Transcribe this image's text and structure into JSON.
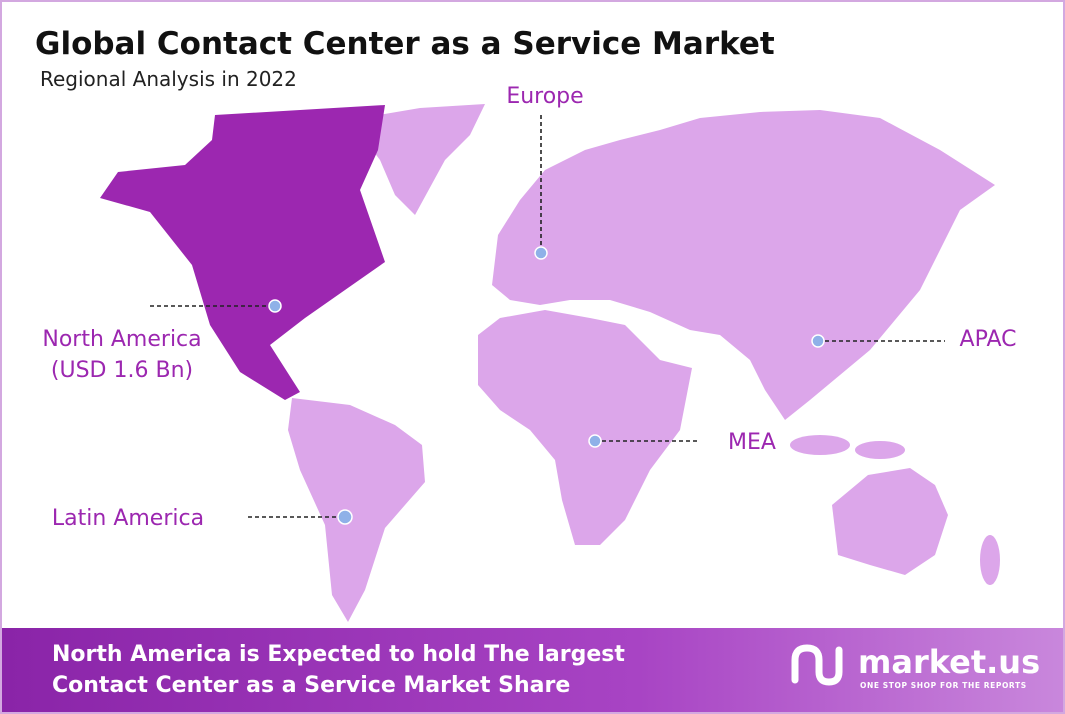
{
  "header": {
    "title": "Global Contact Center as a Service Market",
    "subtitle": "Regional Analysis in 2022"
  },
  "regions": {
    "europe": "Europe",
    "north_america": "North America",
    "north_america_value": "(USD 1.6 Bn)",
    "apac": "APAC",
    "mea": "MEA",
    "latin_america": "Latin America"
  },
  "footer": {
    "line1": "North America is Expected to hold The largest",
    "line2": "Contact Center as a Service Market Share"
  },
  "logo": {
    "name": "market.us",
    "tagline": "ONE STOP SHOP FOR THE REPORTS"
  }
}
